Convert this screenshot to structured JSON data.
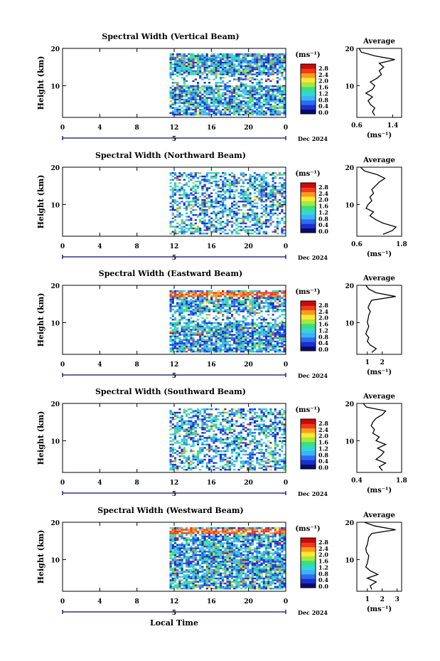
{
  "page": {
    "local_time_label": "Local Time",
    "colorbar_unit": "(ms⁻¹)",
    "colorbar_ticks": [
      "0.0",
      "0.4",
      "0.8",
      "1.2",
      "1.6",
      "2.0",
      "2.4",
      "2.8"
    ],
    "colorbar_colors": [
      "#0b0b6e",
      "#1a2fd0",
      "#2a6ef0",
      "#3cb4f4",
      "#33d6d6",
      "#3ce07a",
      "#a8e83c",
      "#ffe733",
      "#ff9a1f",
      "#f03a1a",
      "#c80a0a"
    ],
    "x_ticks": [
      "0",
      "4",
      "8",
      "12",
      "16",
      "20",
      "0"
    ],
    "day_marker": "5",
    "date_label": "Dec 2024",
    "height_label": "Height (km)",
    "y_ticks": [
      "20",
      "10"
    ],
    "profile_title": "Average",
    "profile_unit": "(ms⁻¹)"
  },
  "chart_data": [
    {
      "type": "heatmap",
      "title": "Spectral Width (Vertical Beam)",
      "ylabel": "Height (km)",
      "xlabel": "Local Time",
      "xlim": [
        0,
        24
      ],
      "ylim": [
        1.5,
        20
      ],
      "data_start_hour": 11.5,
      "colorbar": {
        "label": "(ms⁻¹)",
        "range": [
          0.0,
          2.8
        ]
      },
      "profile": {
        "title": "Average",
        "xticks": [
          "0.6",
          "1.4"
        ],
        "xlim": [
          0.6,
          1.6
        ],
        "yticks": [
          "20",
          "10"
        ],
        "heights": [
          2,
          3,
          4,
          5,
          6,
          7,
          8,
          9,
          10,
          11,
          12,
          13,
          14,
          15,
          16,
          17,
          18,
          19,
          20
        ],
        "values": [
          1.0,
          0.95,
          1.0,
          0.9,
          0.85,
          0.95,
          0.8,
          0.95,
          1.0,
          0.9,
          1.05,
          1.15,
          1.1,
          1.2,
          1.1,
          1.45,
          1.0,
          0.7,
          0.65
        ]
      }
    },
    {
      "type": "heatmap",
      "title": "Spectral Width (Northward Beam)",
      "ylabel": "Height (km)",
      "xlabel": "Local Time",
      "xlim": [
        0,
        24
      ],
      "ylim": [
        1.5,
        20
      ],
      "data_start_hour": 11.5,
      "colorbar": {
        "label": "(ms⁻¹)",
        "range": [
          0.0,
          2.8
        ]
      },
      "profile": {
        "title": "Average",
        "xticks": [
          "0.6",
          "1.8"
        ],
        "xlim": [
          0.6,
          1.8
        ],
        "yticks": [
          "20",
          "10"
        ],
        "heights": [
          2,
          3,
          4,
          5,
          6,
          7,
          8,
          9,
          10,
          11,
          12,
          13,
          14,
          15,
          16,
          17,
          18,
          19,
          20
        ],
        "values": [
          1.3,
          1.55,
          1.65,
          1.3,
          1.1,
          0.95,
          1.05,
          0.85,
          0.9,
          1.0,
          0.95,
          1.05,
          1.0,
          1.1,
          1.2,
          1.35,
          1.15,
          0.8,
          0.7
        ]
      }
    },
    {
      "type": "heatmap",
      "title": "Spectral Width (Eastward Beam)",
      "ylabel": "Height (km)",
      "xlabel": "Local Time",
      "xlim": [
        0,
        24
      ],
      "ylim": [
        1.5,
        20
      ],
      "data_start_hour": 11.5,
      "colorbar": {
        "label": "(ms⁻¹)",
        "range": [
          0.0,
          2.8
        ]
      },
      "profile": {
        "title": "Average",
        "xticks": [
          "1",
          "2"
        ],
        "xlim": [
          0.3,
          3.3
        ],
        "yticks": [
          "20",
          "10"
        ],
        "heights": [
          2,
          3,
          4,
          5,
          6,
          7,
          8,
          9,
          10,
          11,
          12,
          13,
          14,
          15,
          16,
          17,
          18,
          19,
          20
        ],
        "values": [
          1.3,
          1.6,
          1.2,
          1.0,
          1.1,
          0.9,
          1.0,
          1.1,
          1.0,
          1.05,
          1.1,
          1.2,
          1.05,
          1.15,
          1.3,
          2.9,
          1.6,
          1.1,
          0.9
        ]
      }
    },
    {
      "type": "heatmap",
      "title": "Spectral Width (Southward Beam)",
      "ylabel": "Height (km)",
      "xlabel": "Local Time",
      "xlim": [
        0,
        24
      ],
      "ylim": [
        1.5,
        20
      ],
      "data_start_hour": 11.5,
      "colorbar": {
        "label": "(ms⁻¹)",
        "range": [
          0.0,
          2.8
        ]
      },
      "profile": {
        "title": "Average",
        "xticks": [
          "0.4",
          "1.8"
        ],
        "xlim": [
          0.4,
          1.8
        ],
        "yticks": [
          "20",
          "10"
        ],
        "heights": [
          2,
          3,
          4,
          5,
          6,
          7,
          8,
          9,
          10,
          11,
          12,
          13,
          14,
          15,
          16,
          17,
          18,
          19,
          20
        ],
        "values": [
          1.2,
          1.1,
          1.3,
          1.0,
          1.15,
          1.25,
          1.05,
          1.3,
          1.0,
          1.1,
          0.9,
          0.95,
          0.85,
          0.9,
          1.0,
          1.2,
          1.3,
          0.7,
          0.6
        ]
      }
    },
    {
      "type": "heatmap",
      "title": "Spectral Width (Westward Beam)",
      "ylabel": "Height (km)",
      "xlabel": "Local Time",
      "xlim": [
        0,
        24
      ],
      "ylim": [
        1.5,
        20
      ],
      "data_start_hour": 11.5,
      "colorbar": {
        "label": "(ms⁻¹)",
        "range": [
          0.0,
          2.8
        ]
      },
      "profile": {
        "title": "Average",
        "xticks": [
          "1",
          "2",
          "3"
        ],
        "xlim": [
          0.3,
          3.3
        ],
        "yticks": [
          "20",
          "10"
        ],
        "heights": [
          2,
          3,
          4,
          5,
          6,
          7,
          8,
          9,
          10,
          11,
          12,
          13,
          14,
          15,
          16,
          17,
          18,
          19,
          20
        ],
        "values": [
          1.3,
          1.2,
          1.6,
          1.0,
          1.7,
          1.2,
          0.9,
          1.0,
          1.05,
          1.1,
          0.95,
          0.9,
          1.0,
          1.05,
          1.1,
          1.3,
          2.9,
          1.5,
          0.8
        ]
      }
    }
  ]
}
